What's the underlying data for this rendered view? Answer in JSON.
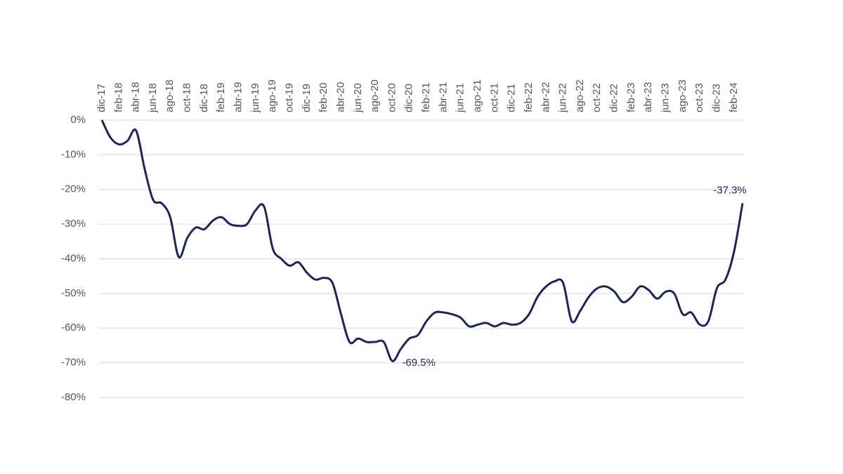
{
  "chart_data": {
    "type": "line",
    "categories": [
      "dic-17",
      null,
      "feb-18",
      null,
      "abr-18",
      null,
      "jun-18",
      null,
      "ago-18",
      null,
      "oct-18",
      null,
      "dic-18",
      null,
      "feb-19",
      null,
      "abr-19",
      null,
      "jun-19",
      null,
      "ago-19",
      null,
      "oct-19",
      null,
      "dic-19",
      null,
      "feb-20",
      null,
      "abr-20",
      null,
      "jun-20",
      null,
      "ago-20",
      null,
      "oct-20",
      null,
      "dic-20",
      null,
      "feb-21",
      null,
      "abr-21",
      null,
      "jun-21",
      null,
      "ago-21",
      null,
      "oct-21",
      null,
      "dic-21",
      null,
      "feb-22",
      null,
      "abr-22",
      null,
      "jun-22",
      null,
      "ago-22",
      null,
      "oct-22",
      null,
      "dic-22",
      null,
      "feb-23",
      null,
      "abr-23",
      null,
      "jun-23",
      null,
      "ago-23",
      null,
      "oct-23",
      null,
      "dic-23",
      null,
      "feb-24",
      null
    ],
    "series": [
      {
        "color": "#1b2656",
        "values": [
          0,
          -5,
          -7,
          -6,
          -3,
          -14,
          -23,
          -24,
          -28,
          -39.5,
          -34,
          -31,
          -31.5,
          -29,
          -28,
          -30,
          -30.5,
          -30,
          -26,
          -25,
          -37,
          -40,
          -42,
          -41,
          -44,
          -46,
          -45.5,
          -47,
          -56,
          -64,
          -63,
          -64,
          -64,
          -64,
          -69.5,
          -66,
          -63,
          -62,
          -58,
          -55.5,
          -55.5,
          -56,
          -57,
          -59.5,
          -59,
          -58.5,
          -59.5,
          -58.5,
          -59,
          -58.5,
          -56,
          -51,
          -48,
          -46.5,
          -47,
          -58,
          -55,
          -51,
          -48.5,
          -48,
          -49.5,
          -52.5,
          -51,
          -48,
          -49,
          -51.5,
          -49.5,
          -50,
          -56,
          -55.5,
          -59,
          -58,
          -48.5,
          -46,
          -38,
          -24
        ]
      }
    ],
    "annotations": [
      "-69.5%",
      "-37.3%"
    ],
    "ylim": [
      -80,
      0
    ],
    "yticks": [
      {
        "value": 0,
        "label": "0%"
      },
      {
        "value": -10,
        "label": "-10%"
      },
      {
        "value": -20,
        "label": "-20%"
      },
      {
        "value": -30,
        "label": "-30%"
      },
      {
        "value": -40,
        "label": "-40%"
      },
      {
        "value": -50,
        "label": "-50%"
      },
      {
        "value": -60,
        "label": "-60%"
      },
      {
        "value": -70,
        "label": "-70%"
      },
      {
        "value": -80,
        "label": "-80%"
      }
    ],
    "grid": true
  }
}
